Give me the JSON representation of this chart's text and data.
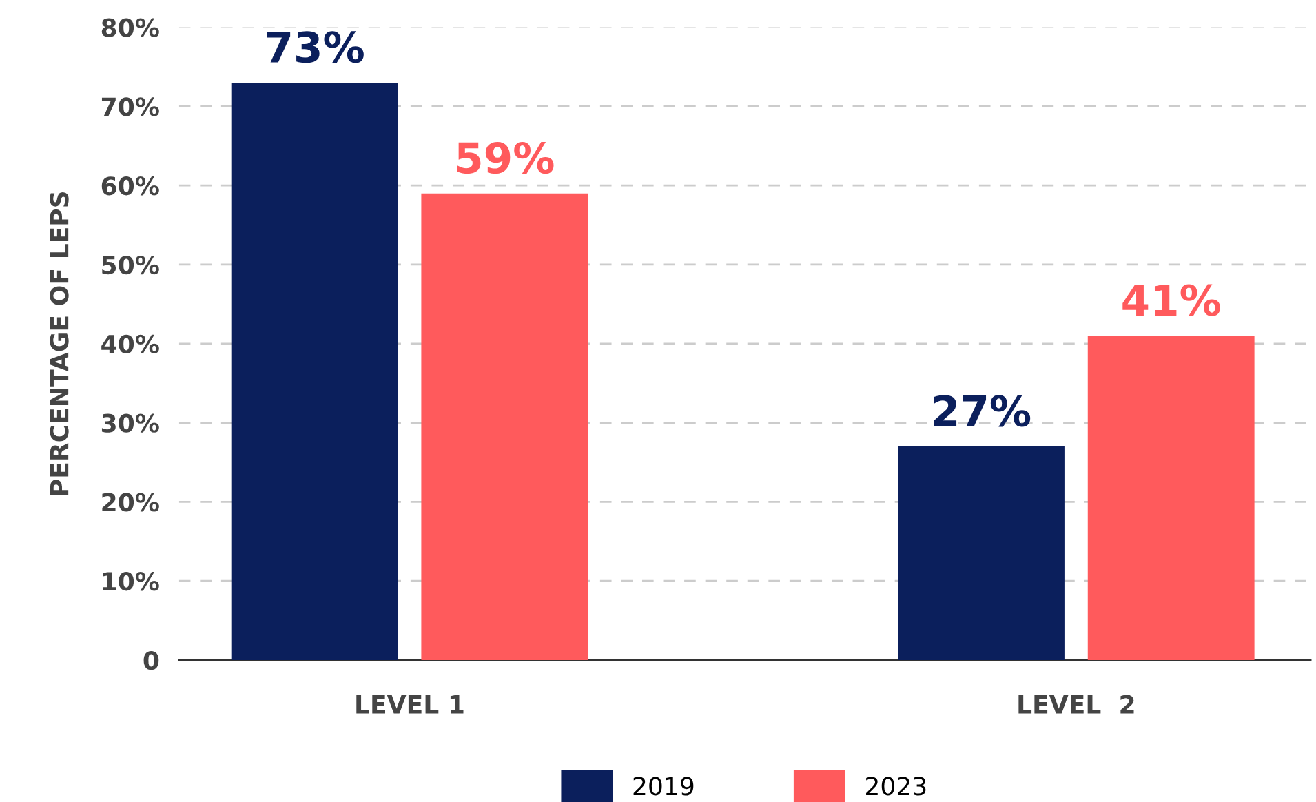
{
  "chart_data": {
    "type": "bar",
    "ylabel": "PERCENTAGE OF LEPS",
    "categories": [
      "LEVEL 1",
      "LEVEL  2"
    ],
    "series": [
      {
        "name": "2019",
        "color": "#0b1f5c",
        "values": [
          73,
          27
        ],
        "value_labels": [
          "73%",
          "27%"
        ]
      },
      {
        "name": "2023",
        "color": "#ff5a5c",
        "values": [
          59,
          41
        ],
        "value_labels": [
          "59%",
          "41%"
        ]
      }
    ],
    "ylim": [
      0,
      80
    ],
    "yticks": [
      {
        "value": 0,
        "label": "0"
      },
      {
        "value": 10,
        "label": "10%"
      },
      {
        "value": 20,
        "label": "20%"
      },
      {
        "value": 30,
        "label": "30%"
      },
      {
        "value": 40,
        "label": "40%"
      },
      {
        "value": 50,
        "label": "50%"
      },
      {
        "value": 60,
        "label": "60%"
      },
      {
        "value": 70,
        "label": "70%"
      },
      {
        "value": 80,
        "label": "80%"
      }
    ],
    "grid": "y",
    "legend": "bottom"
  }
}
